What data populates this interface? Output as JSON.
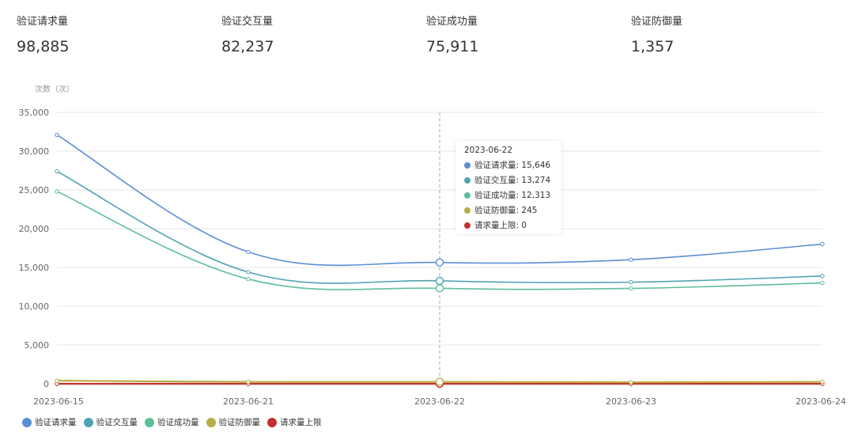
{
  "stats": [
    {
      "label": "验证请求量",
      "value": "98,885"
    },
    {
      "label": "验证交互量",
      "value": "82,237"
    },
    {
      "label": "验证成功量",
      "value": "75,911"
    },
    {
      "label": "验证防御量",
      "value": "1,357"
    }
  ],
  "tooltip": {
    "title": "2023-06-22",
    "rows": [
      {
        "name": "验证请求量",
        "value": "15,646",
        "color": "#5b8fd6"
      },
      {
        "name": "验证交互量",
        "value": "13,274",
        "color": "#4fa3b3"
      },
      {
        "name": "验证成功量",
        "value": "12,313",
        "color": "#5dbf96"
      },
      {
        "name": "验证防御量",
        "value": "245",
        "color": "#b8ac45"
      },
      {
        "name": "请求量上限",
        "value": "0",
        "color": "#c4302b"
      }
    ]
  },
  "chart_data": {
    "type": "line",
    "ylabel": "次数（次）",
    "x": [
      "2023-06-15",
      "2023-06-21",
      "2023-06-22",
      "2023-06-23",
      "2023-06-24"
    ],
    "ylim": [
      0,
      35000
    ],
    "yticks": [
      0,
      5000,
      10000,
      15000,
      20000,
      25000,
      30000,
      35000
    ],
    "ytick_labels": [
      "0",
      "5,000",
      "10,000",
      "15,000",
      "20,000",
      "25,000",
      "30,000",
      "35,000"
    ],
    "grid": true,
    "legend_position": "bottom-left",
    "highlighted_x": "2023-06-22",
    "series": [
      {
        "name": "验证请求量",
        "color": "#5b8fd6",
        "values": [
          32100,
          17000,
          15646,
          16000,
          18000
        ]
      },
      {
        "name": "验证交互量",
        "color": "#4fa3b3",
        "values": [
          27400,
          14400,
          13274,
          13100,
          13900
        ]
      },
      {
        "name": "验证成功量",
        "color": "#5dbf96",
        "values": [
          24800,
          13500,
          12313,
          12300,
          13000
        ]
      },
      {
        "name": "验证防御量",
        "color": "#b8ac45",
        "values": [
          400,
          250,
          245,
          200,
          250
        ]
      },
      {
        "name": "请求量上限",
        "color": "#c4302b",
        "values": [
          0,
          0,
          0,
          0,
          0
        ]
      }
    ]
  }
}
